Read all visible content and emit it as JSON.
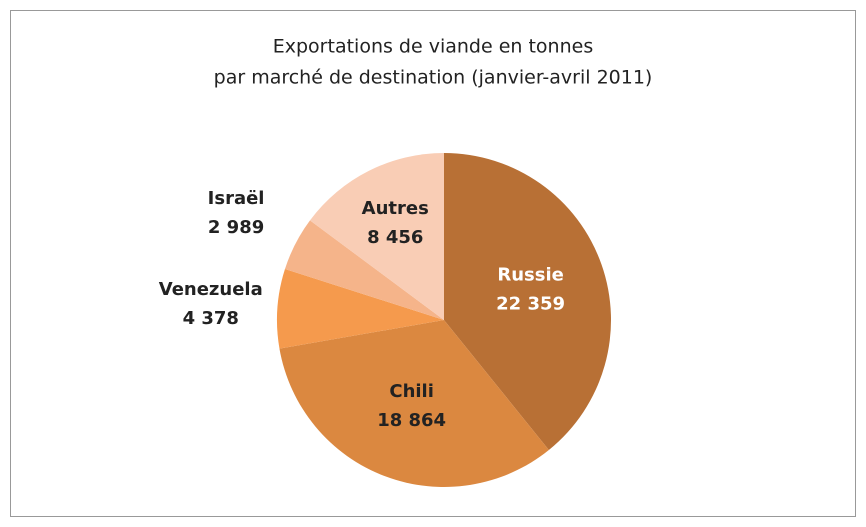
{
  "chart_data": {
    "type": "pie",
    "title": [
      "Exportations de viande en tonnes",
      "par marché de destination (janvier-avril 2011)"
    ],
    "categories": [
      "Russie",
      "Chili",
      "Venezuela",
      "Israël",
      "Autres"
    ],
    "values": [
      22359,
      18864,
      4378,
      2989,
      8456
    ],
    "value_labels": [
      "22 359",
      "18 864",
      "4 378",
      "2 989",
      "8 456"
    ],
    "colors": [
      "#b87035",
      "#db8840",
      "#f59a4d",
      "#f5b48a",
      "#f9cdb5"
    ]
  }
}
